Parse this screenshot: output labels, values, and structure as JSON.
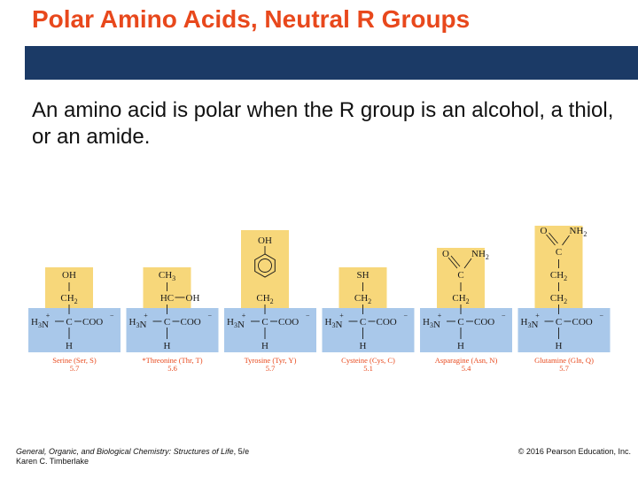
{
  "slide": {
    "title": "Polar Amino Acids, Neutral R Groups",
    "body": "An amino acid is polar when the R group is an alcohol, a thiol, or an amide."
  },
  "colors": {
    "title": "#e8481c",
    "band": "#1b3a66",
    "r_group_box": "#f7d77a",
    "backbone_box": "#a9c8ea",
    "name_text": "#e8481c"
  },
  "backbone": {
    "amine": "H3N",
    "charge": "+",
    "carboxyl": "COO",
    "carboxyl_charge": "−",
    "bottom_h": "H"
  },
  "amino_acids": [
    {
      "name": "Serine (Ser, S)",
      "pi": "5.7",
      "r_group": [
        "OH",
        "CH2"
      ]
    },
    {
      "name": "*Threonine (Thr, T)",
      "pi": "5.6",
      "r_group": [
        "CH3",
        "HC—OH"
      ]
    },
    {
      "name": "Tyrosine (Tyr, Y)",
      "pi": "5.7",
      "r_group": [
        "OH",
        "benzene-ring",
        "CH2"
      ]
    },
    {
      "name": "Cysteine (Cys, C)",
      "pi": "5.1",
      "r_group": [
        "SH",
        "CH2"
      ]
    },
    {
      "name": "Asparagine (Asn, N)",
      "pi": "5.4",
      "r_group": [
        "O=C—NH2",
        "CH2"
      ]
    },
    {
      "name": "Glutamine (Gln, Q)",
      "pi": "5.7",
      "r_group": [
        "O=C—NH2",
        "CH2",
        "CH2"
      ]
    }
  ],
  "footer": {
    "book_title": "General, Organic, and Biological Chemistry: Structures of Life",
    "edition": ", 5/e",
    "author": "Karen C. Timberlake",
    "copyright": "© 2016 Pearson Education, Inc."
  }
}
